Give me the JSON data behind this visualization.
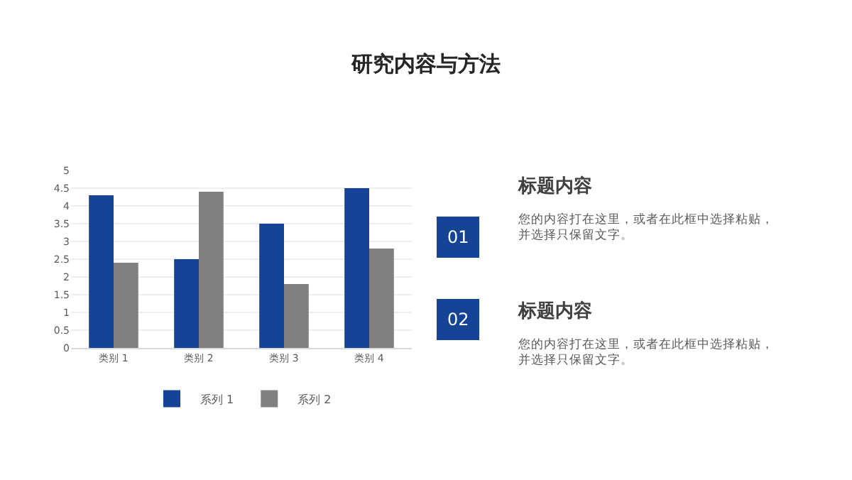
{
  "chart_data": {
    "type": "bar",
    "title": "研究内容与方法",
    "categories": [
      "类别 1",
      "类别 2",
      "类别 3",
      "类别 4"
    ],
    "series": [
      {
        "name": "系列 1",
        "color": "#154497",
        "values": [
          4.3,
          2.5,
          3.5,
          4.5
        ]
      },
      {
        "name": "系列 2",
        "color": "#808080",
        "values": [
          2.4,
          4.4,
          1.8,
          2.8
        ]
      }
    ],
    "ylim": [
      0,
      5
    ],
    "yticks": [
      0,
      0.5,
      1,
      1.5,
      2,
      2.5,
      3,
      3.5,
      4,
      4.5,
      5
    ],
    "grid": "y",
    "legend": "bottom",
    "annotations": [
      "01",
      "标题内容",
      "您的内容打在这里，或者在此框中选择粘贴，并选择只保留文字。",
      "02",
      "标题内容",
      "您的内容打在这里，或者在此框中选择粘贴，并选择只保留文字。"
    ]
  }
}
